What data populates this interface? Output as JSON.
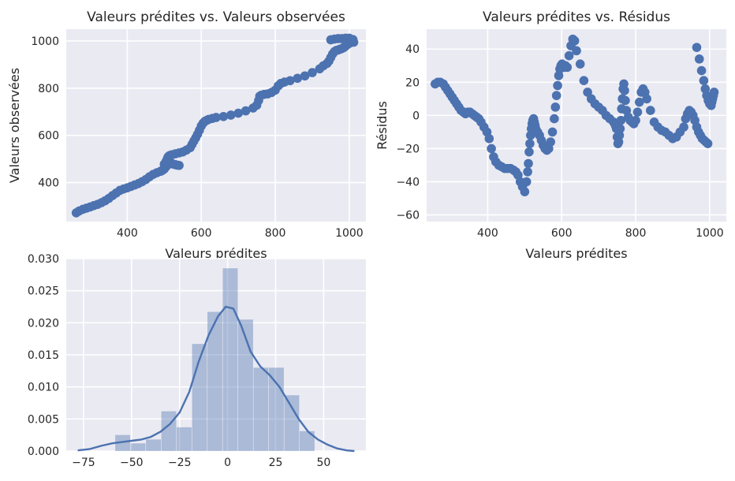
{
  "chart_data": [
    {
      "type": "scatter",
      "title": "Valeurs prédites vs. Valeurs observées",
      "xlabel": "Valeurs prédites",
      "ylabel": "Valeurs observées",
      "xlim": [
        235,
        1045
      ],
      "ylim": [
        235,
        1050
      ],
      "xticks": [
        400,
        600,
        800,
        1000
      ],
      "yticks": [
        400,
        600,
        800,
        1000
      ],
      "grid": true,
      "color": "#4c72b0",
      "points": [
        [
          262,
          272
        ],
        [
          270,
          280
        ],
        [
          280,
          287
        ],
        [
          290,
          292
        ],
        [
          300,
          297
        ],
        [
          310,
          303
        ],
        [
          320,
          308
        ],
        [
          330,
          315
        ],
        [
          340,
          323
        ],
        [
          350,
          333
        ],
        [
          360,
          345
        ],
        [
          370,
          356
        ],
        [
          380,
          367
        ],
        [
          390,
          373
        ],
        [
          400,
          378
        ],
        [
          410,
          384
        ],
        [
          420,
          390
        ],
        [
          430,
          396
        ],
        [
          440,
          404
        ],
        [
          450,
          413
        ],
        [
          460,
          425
        ],
        [
          470,
          435
        ],
        [
          480,
          442
        ],
        [
          490,
          448
        ],
        [
          495,
          452
        ],
        [
          500,
          458
        ],
        [
          505,
          468
        ],
        [
          510,
          478
        ],
        [
          515,
          480
        ],
        [
          520,
          482
        ],
        [
          525,
          478
        ],
        [
          530,
          476
        ],
        [
          535,
          474
        ],
        [
          540,
          473
        ],
        [
          500,
          478
        ],
        [
          505,
          490
        ],
        [
          508,
          500
        ],
        [
          510,
          508
        ],
        [
          512,
          512
        ],
        [
          515,
          515
        ],
        [
          520,
          518
        ],
        [
          530,
          522
        ],
        [
          540,
          526
        ],
        [
          550,
          530
        ],
        [
          560,
          538
        ],
        [
          570,
          548
        ],
        [
          575,
          562
        ],
        [
          580,
          576
        ],
        [
          585,
          590
        ],
        [
          590,
          605
        ],
        [
          595,
          622
        ],
        [
          600,
          640
        ],
        [
          605,
          652
        ],
        [
          610,
          660
        ],
        [
          615,
          664
        ],
        [
          620,
          668
        ],
        [
          630,
          672
        ],
        [
          640,
          676
        ],
        [
          660,
          680
        ],
        [
          680,
          686
        ],
        [
          700,
          694
        ],
        [
          720,
          704
        ],
        [
          740,
          716
        ],
        [
          750,
          728
        ],
        [
          755,
          748
        ],
        [
          758,
          766
        ],
        [
          762,
          770
        ],
        [
          770,
          774
        ],
        [
          780,
          776
        ],
        [
          790,
          782
        ],
        [
          800,
          792
        ],
        [
          808,
          810
        ],
        [
          815,
          820
        ],
        [
          825,
          826
        ],
        [
          840,
          832
        ],
        [
          860,
          842
        ],
        [
          880,
          852
        ],
        [
          900,
          866
        ],
        [
          920,
          882
        ],
        [
          930,
          895
        ],
        [
          940,
          905
        ],
        [
          945,
          915
        ],
        [
          950,
          930
        ],
        [
          955,
          945
        ],
        [
          960,
          955
        ],
        [
          965,
          960
        ],
        [
          970,
          962
        ],
        [
          975,
          965
        ],
        [
          980,
          968
        ],
        [
          985,
          972
        ],
        [
          990,
          978
        ],
        [
          995,
          985
        ],
        [
          1000,
          990
        ],
        [
          1005,
          996
        ],
        [
          1008,
          1002
        ],
        [
          1010,
          1006
        ],
        [
          950,
          1005
        ],
        [
          960,
          1008
        ],
        [
          970,
          1010
        ],
        [
          980,
          1010
        ],
        [
          990,
          1012
        ],
        [
          1000,
          1012
        ],
        [
          1010,
          1000
        ],
        [
          1012,
          995
        ]
      ]
    },
    {
      "type": "scatter",
      "title": "Valeurs prédites vs. Résidus",
      "xlabel": "Valeurs prédites",
      "ylabel": "Résidus",
      "xlim": [
        235,
        1045
      ],
      "ylim": [
        -64,
        52
      ],
      "xticks": [
        400,
        600,
        800,
        1000
      ],
      "yticks": [
        -60,
        -40,
        -20,
        0,
        20,
        40
      ],
      "grid": true,
      "color": "#4c72b0",
      "points": [
        [
          258,
          19
        ],
        [
          265,
          20
        ],
        [
          272,
          20
        ],
        [
          280,
          19
        ],
        [
          286,
          17
        ],
        [
          292,
          15
        ],
        [
          298,
          13
        ],
        [
          304,
          11
        ],
        [
          310,
          9
        ],
        [
          316,
          7
        ],
        [
          322,
          5
        ],
        [
          328,
          3
        ],
        [
          334,
          2
        ],
        [
          340,
          1
        ],
        [
          346,
          2
        ],
        [
          352,
          2
        ],
        [
          358,
          1
        ],
        [
          364,
          0
        ],
        [
          370,
          -1
        ],
        [
          376,
          -2
        ],
        [
          382,
          -4
        ],
        [
          390,
          -7
        ],
        [
          398,
          -10
        ],
        [
          404,
          -14
        ],
        [
          410,
          -20
        ],
        [
          416,
          -25
        ],
        [
          422,
          -28
        ],
        [
          430,
          -30
        ],
        [
          438,
          -31
        ],
        [
          446,
          -32
        ],
        [
          454,
          -32
        ],
        [
          462,
          -32
        ],
        [
          470,
          -33
        ],
        [
          476,
          -34
        ],
        [
          482,
          -36
        ],
        [
          488,
          -40
        ],
        [
          494,
          -43
        ],
        [
          500,
          -46
        ],
        [
          505,
          -40
        ],
        [
          508,
          -34
        ],
        [
          510,
          -29
        ],
        [
          512,
          -22
        ],
        [
          514,
          -17
        ],
        [
          516,
          -12
        ],
        [
          518,
          -8
        ],
        [
          520,
          -5
        ],
        [
          522,
          -3
        ],
        [
          524,
          -2
        ],
        [
          526,
          -4
        ],
        [
          528,
          -6
        ],
        [
          530,
          -8
        ],
        [
          535,
          -10
        ],
        [
          540,
          -12
        ],
        [
          545,
          -15
        ],
        [
          550,
          -18
        ],
        [
          555,
          -20
        ],
        [
          560,
          -21
        ],
        [
          565,
          -20
        ],
        [
          570,
          -16
        ],
        [
          575,
          -10
        ],
        [
          580,
          -2
        ],
        [
          583,
          5
        ],
        [
          586,
          12
        ],
        [
          589,
          18
        ],
        [
          592,
          24
        ],
        [
          595,
          28
        ],
        [
          598,
          30
        ],
        [
          601,
          31
        ],
        [
          604,
          30
        ],
        [
          607,
          29
        ],
        [
          610,
          30
        ],
        [
          615,
          29
        ],
        [
          620,
          36
        ],
        [
          625,
          42
        ],
        [
          630,
          46
        ],
        [
          635,
          45
        ],
        [
          640,
          39
        ],
        [
          650,
          31
        ],
        [
          660,
          21
        ],
        [
          670,
          14
        ],
        [
          680,
          10
        ],
        [
          690,
          7
        ],
        [
          700,
          5
        ],
        [
          710,
          3
        ],
        [
          720,
          0
        ],
        [
          730,
          -2
        ],
        [
          740,
          -4
        ],
        [
          745,
          -6
        ],
        [
          748,
          -8
        ],
        [
          750,
          -13
        ],
        [
          752,
          -17
        ],
        [
          754,
          -16
        ],
        [
          756,
          -12
        ],
        [
          758,
          -8
        ],
        [
          760,
          -3
        ],
        [
          762,
          4
        ],
        [
          764,
          10
        ],
        [
          766,
          16
        ],
        [
          768,
          19
        ],
        [
          770,
          15
        ],
        [
          772,
          9
        ],
        [
          775,
          3
        ],
        [
          780,
          -1
        ],
        [
          785,
          -3
        ],
        [
          790,
          -4
        ],
        [
          795,
          -5
        ],
        [
          800,
          -3
        ],
        [
          805,
          2
        ],
        [
          810,
          8
        ],
        [
          815,
          14
        ],
        [
          820,
          16
        ],
        [
          825,
          14
        ],
        [
          830,
          10
        ],
        [
          840,
          3
        ],
        [
          850,
          -4
        ],
        [
          860,
          -7
        ],
        [
          870,
          -9
        ],
        [
          880,
          -10
        ],
        [
          890,
          -12
        ],
        [
          900,
          -14
        ],
        [
          910,
          -13
        ],
        [
          920,
          -10
        ],
        [
          930,
          -7
        ],
        [
          935,
          -2
        ],
        [
          940,
          1
        ],
        [
          945,
          3
        ],
        [
          950,
          2
        ],
        [
          955,
          0
        ],
        [
          960,
          -3
        ],
        [
          965,
          -7
        ],
        [
          970,
          -10
        ],
        [
          975,
          -12
        ],
        [
          980,
          -14
        ],
        [
          985,
          -15
        ],
        [
          990,
          -16
        ],
        [
          995,
          -17
        ],
        [
          965,
          41
        ],
        [
          972,
          34
        ],
        [
          978,
          27
        ],
        [
          984,
          21
        ],
        [
          988,
          16
        ],
        [
          992,
          12
        ],
        [
          996,
          9
        ],
        [
          1000,
          7
        ],
        [
          1004,
          6
        ],
        [
          1006,
          8
        ],
        [
          1008,
          10
        ],
        [
          1010,
          12
        ],
        [
          1012,
          14
        ]
      ]
    },
    {
      "type": "histogram",
      "xlim": [
        -84,
        72
      ],
      "ylim": [
        0,
        0.03
      ],
      "xticks": [
        -75,
        -50,
        -25,
        0,
        25,
        50
      ],
      "yticks": [
        0.0,
        0.005,
        0.01,
        0.015,
        0.02,
        0.025,
        0.03
      ],
      "ytick_labels": [
        "0.000",
        "0.005",
        "0.010",
        "0.015",
        "0.020",
        "0.025",
        "0.030"
      ],
      "grid": true,
      "bar_color": "#4c72b0",
      "bar_opacity": 0.4,
      "kde_color": "#4c72b0",
      "bins": [
        {
          "x0": -58.5,
          "x1": -50.5,
          "density": 0.0025
        },
        {
          "x0": -50.5,
          "x1": -42.5,
          "density": 0.0012
        },
        {
          "x0": -42.5,
          "x1": -34.5,
          "density": 0.0018
        },
        {
          "x0": -34.5,
          "x1": -26.5,
          "density": 0.0062
        },
        {
          "x0": -26.5,
          "x1": -18.5,
          "density": 0.0037
        },
        {
          "x0": -18.5,
          "x1": -10.5,
          "density": 0.0167
        },
        {
          "x0": -10.5,
          "x1": -2.5,
          "density": 0.0217
        },
        {
          "x0": -2.5,
          "x1": 5.5,
          "density": 0.0285
        },
        {
          "x0": 5.5,
          "x1": 13.5,
          "density": 0.0205
        },
        {
          "x0": 13.5,
          "x1": 21.5,
          "density": 0.013
        },
        {
          "x0": 21.5,
          "x1": 29.5,
          "density": 0.013
        },
        {
          "x0": 29.5,
          "x1": 37.5,
          "density": 0.0087
        },
        {
          "x0": 37.5,
          "x1": 45.5,
          "density": 0.0031
        }
      ],
      "kde": [
        [
          -78,
          0.0001
        ],
        [
          -72,
          0.0003
        ],
        [
          -66,
          0.0008
        ],
        [
          -60,
          0.0012
        ],
        [
          -55,
          0.0014
        ],
        [
          -50,
          0.0016
        ],
        [
          -45,
          0.0018
        ],
        [
          -40,
          0.0022
        ],
        [
          -35,
          0.003
        ],
        [
          -30,
          0.0042
        ],
        [
          -25,
          0.006
        ],
        [
          -20,
          0.0092
        ],
        [
          -15,
          0.014
        ],
        [
          -10,
          0.018
        ],
        [
          -5,
          0.021
        ],
        [
          -1,
          0.0225
        ],
        [
          3,
          0.0222
        ],
        [
          7,
          0.0196
        ],
        [
          12,
          0.0155
        ],
        [
          17,
          0.0132
        ],
        [
          22,
          0.0118
        ],
        [
          27,
          0.01
        ],
        [
          32,
          0.0075
        ],
        [
          37,
          0.005
        ],
        [
          42,
          0.003
        ],
        [
          47,
          0.0018
        ],
        [
          52,
          0.001
        ],
        [
          57,
          0.0004
        ],
        [
          62,
          0.0001
        ],
        [
          66,
          0.0
        ]
      ]
    }
  ]
}
